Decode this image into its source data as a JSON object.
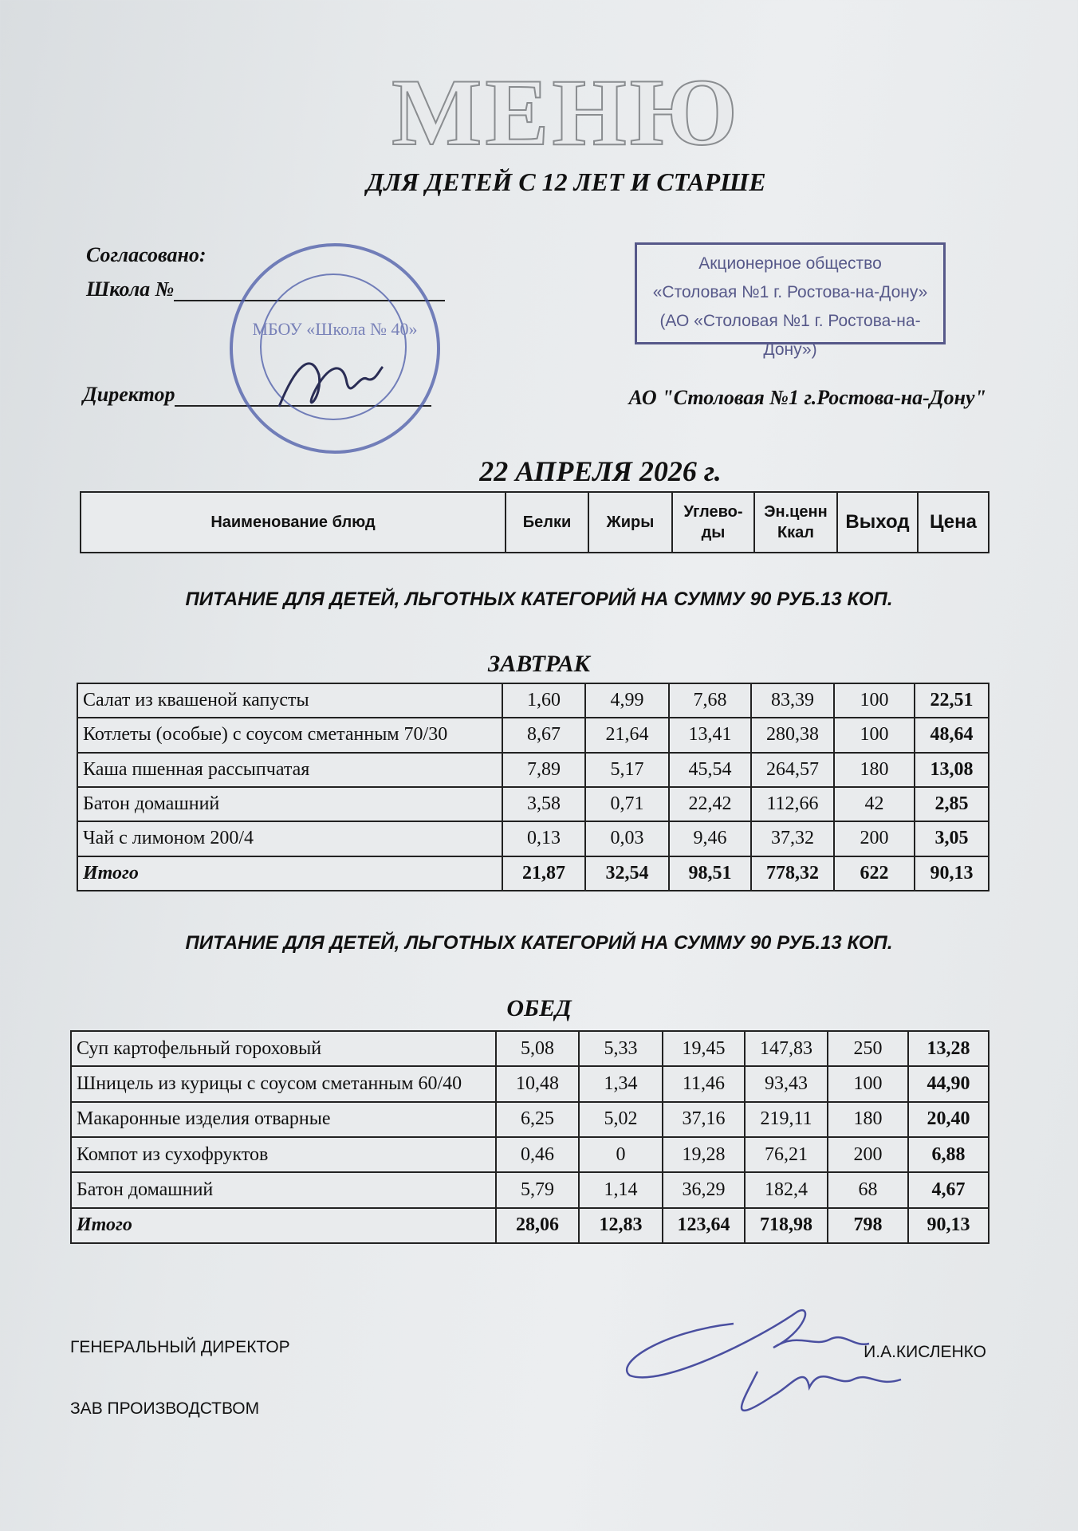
{
  "title": "МЕНЮ",
  "subtitle": "ДЛЯ ДЕТЕЙ С 12 ЛЕТ И СТАРШЕ",
  "approval": {
    "agreed": "Согласовано:",
    "school": "Школа №",
    "director": "Директор"
  },
  "stamp_box": {
    "line1": "Акционерное общество",
    "line2": "«Столовая №1 г. Ростова-на-Дону»",
    "line3": "(АО «Столовая №1 г. Ростова-на-Дону»)"
  },
  "round_stamp": {
    "center": "МБОУ «Школа № 40»",
    "stamp_color": "#4a5aa8"
  },
  "company": "АО \"Столовая №1 г.Ростова-на-Дону\"",
  "date": "22  АПРЕЛЯ  2026 г.",
  "header": [
    "Наименование блюд",
    "Белки",
    "Жиры",
    "Углево-ды",
    "Эн.ценн Ккал",
    "Выход",
    "Цена"
  ],
  "sections": [
    {
      "note": "ПИТАНИЕ ДЛЯ ДЕТЕЙ, ЛЬГОТНЫХ КАТЕГОРИЙ  НА СУММУ  90 РУБ.13 КОП.",
      "meal": "ЗАВТРАК",
      "rows": [
        [
          "Салат из квашеной капусты",
          "1,60",
          "4,99",
          "7,68",
          "83,39",
          "100",
          "22,51"
        ],
        [
          "Котлеты (особые) с соусом сметанным 70/30",
          "8,67",
          "21,64",
          "13,41",
          "280,38",
          "100",
          "48,64"
        ],
        [
          "Каша пшенная рассыпчатая",
          "7,89",
          "5,17",
          "45,54",
          "264,57",
          "180",
          "13,08"
        ],
        [
          "Батон домашний",
          "3,58",
          "0,71",
          "22,42",
          "112,66",
          "42",
          "2,85"
        ],
        [
          "Чай с лимоном 200/4",
          "0,13",
          "0,03",
          "9,46",
          "37,32",
          "200",
          "3,05"
        ]
      ],
      "total": [
        "Итого",
        "21,87",
        "32,54",
        "98,51",
        "778,32",
        "622",
        "90,13"
      ]
    },
    {
      "note": "ПИТАНИЕ ДЛЯ ДЕТЕЙ, ЛЬГОТНЫХ КАТЕГОРИЙ  НА СУММУ  90 РУБ.13 КОП.",
      "meal": "ОБЕД",
      "rows": [
        [
          "Суп картофельный гороховый",
          "5,08",
          "5,33",
          "19,45",
          "147,83",
          "250",
          "13,28"
        ],
        [
          "Шницель из курицы с соусом сметанным 60/40",
          "10,48",
          "1,34",
          "11,46",
          "93,43",
          "100",
          "44,90"
        ],
        [
          "Макаронные изделия отварные",
          "6,25",
          "5,02",
          "37,16",
          "219,11",
          "180",
          "20,40"
        ],
        [
          "Компот из сухофруктов",
          "0,46",
          "0",
          "19,28",
          "76,21",
          "200",
          "6,88"
        ],
        [
          "Батон домашний",
          "5,79",
          "1,14",
          "36,29",
          "182,4",
          "68",
          "4,67"
        ]
      ],
      "total": [
        "Итого",
        "28,06",
        "12,83",
        "123,64",
        "718,98",
        "798",
        "90,13"
      ]
    }
  ],
  "footer": {
    "general_director": "ГЕНЕРАЛЬНЫЙ ДИРЕКТОР",
    "director_name": "И.А.КИСЛЕНКО",
    "production_head": "ЗАВ ПРОИЗВОДСТВОМ"
  }
}
